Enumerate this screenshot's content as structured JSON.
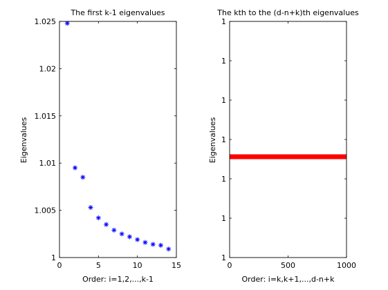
{
  "figure": {
    "background": "#ffffff"
  },
  "chart_data": [
    {
      "type": "scatter",
      "title": "The first k-1 eigenvalues",
      "xlabel": "Order: i=1,2,...,k-1",
      "ylabel": "Eigenvalues",
      "xlim": [
        0,
        15
      ],
      "ylim": [
        1,
        1.025
      ],
      "xticks": [
        0,
        5,
        10,
        15
      ],
      "xtick_labels": [
        "0",
        "5",
        "10",
        "15"
      ],
      "yticks": [
        1,
        1.005,
        1.01,
        1.015,
        1.02,
        1.025
      ],
      "ytick_labels": [
        "1",
        "1.005",
        "1.01",
        "1.015",
        "1.02",
        "1.025"
      ],
      "grid": false,
      "marker": "*",
      "marker_color": "#0000ff",
      "series": [
        {
          "x": [
            1,
            2,
            3,
            4,
            5,
            6,
            7,
            8,
            9,
            10,
            11,
            12,
            13,
            14
          ],
          "y": [
            1.0248,
            1.0095,
            1.0085,
            1.0053,
            1.0042,
            1.0035,
            1.0029,
            1.0025,
            1.0022,
            1.0019,
            1.0016,
            1.0014,
            1.0013,
            1.0009
          ]
        }
      ]
    },
    {
      "type": "line",
      "title": "The kth to the (d-n+k)th eigenvalues",
      "xlabel": "Order: i=k,k+1,...,d-n+k",
      "ylabel": "Eigenvalues",
      "xlim": [
        0,
        1000
      ],
      "xticks": [
        0,
        500,
        1000
      ],
      "xtick_labels": [
        "0",
        "500",
        "1000"
      ],
      "ytick_labels": [
        "1",
        "1",
        "1",
        "1",
        "1",
        "1",
        "1"
      ],
      "grid": false,
      "line_color": "#ff0000",
      "series": [
        {
          "x": [
            0,
            1000
          ],
          "y": [
            1,
            1
          ]
        }
      ]
    }
  ]
}
